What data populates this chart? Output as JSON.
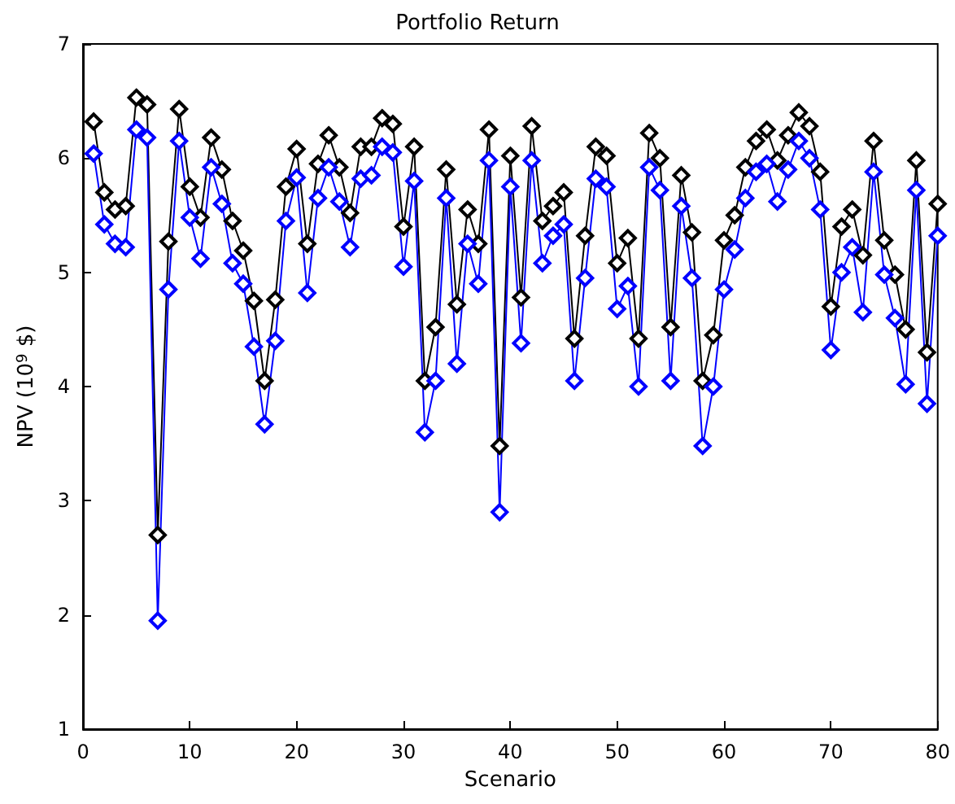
{
  "chart_data": {
    "type": "line",
    "title": "Portfolio Return",
    "xlabel": "Scenario",
    "ylabel": "NPV (10$^{9}$ $)",
    "x": [
      1,
      2,
      3,
      4,
      5,
      6,
      7,
      8,
      9,
      10,
      11,
      12,
      13,
      14,
      15,
      16,
      17,
      18,
      19,
      20,
      21,
      22,
      23,
      24,
      25,
      26,
      27,
      28,
      29,
      30,
      31,
      32,
      33,
      34,
      35,
      36,
      37,
      38,
      39,
      40,
      41,
      42,
      43,
      44,
      45,
      46,
      47,
      48,
      49,
      50,
      51,
      52,
      53,
      54,
      55,
      56,
      57,
      58,
      59,
      60,
      61,
      62,
      63,
      64,
      65,
      66,
      67,
      68,
      69,
      70,
      71,
      72,
      73,
      74,
      75,
      76,
      77,
      78,
      79,
      80
    ],
    "series": [
      {
        "color": "#000000",
        "values": [
          6.32,
          5.7,
          5.55,
          5.58,
          6.53,
          6.47,
          2.7,
          5.27,
          6.43,
          5.75,
          5.48,
          6.18,
          5.9,
          5.45,
          5.19,
          4.75,
          4.05,
          4.76,
          5.75,
          6.08,
          5.25,
          5.95,
          6.2,
          5.92,
          5.52,
          6.1,
          6.1,
          6.35,
          6.3,
          5.4,
          6.1,
          4.05,
          4.52,
          5.9,
          4.72,
          5.55,
          5.25,
          6.25,
          3.48,
          6.02,
          4.78,
          6.28,
          5.45,
          5.58,
          5.7,
          4.42,
          5.32,
          6.1,
          6.02,
          5.08,
          5.3,
          4.42,
          6.22,
          6.0,
          4.52,
          5.85,
          5.35,
          4.05,
          4.45,
          5.28,
          5.5,
          5.92,
          6.15,
          6.25,
          5.98,
          6.2,
          6.4,
          6.28,
          5.88,
          4.7,
          5.4,
          5.55,
          5.15,
          6.15,
          5.28,
          4.98,
          4.5,
          5.98,
          4.3,
          5.6
        ]
      },
      {
        "color": "#0000ff",
        "values": [
          6.04,
          5.42,
          5.25,
          5.22,
          6.25,
          6.18,
          1.95,
          4.85,
          6.15,
          5.48,
          5.12,
          5.92,
          5.6,
          5.08,
          4.9,
          4.35,
          3.67,
          4.4,
          5.45,
          5.83,
          4.82,
          5.65,
          5.92,
          5.62,
          5.22,
          5.82,
          5.85,
          6.1,
          6.05,
          5.05,
          5.8,
          3.6,
          4.05,
          5.65,
          4.2,
          5.25,
          4.9,
          5.98,
          2.9,
          5.75,
          4.38,
          5.98,
          5.08,
          5.32,
          5.42,
          4.05,
          4.95,
          5.82,
          5.75,
          4.68,
          4.88,
          4.0,
          5.92,
          5.72,
          4.05,
          5.58,
          4.95,
          3.48,
          4.0,
          4.85,
          5.2,
          5.65,
          5.88,
          5.95,
          5.62,
          5.9,
          6.15,
          6.0,
          5.55,
          4.32,
          5.0,
          5.22,
          4.65,
          5.88,
          4.98,
          4.6,
          4.02,
          5.72,
          3.85,
          5.32
        ]
      }
    ],
    "xlim": [
      0,
      80
    ],
    "xticks": [
      0,
      10,
      20,
      30,
      40,
      50,
      60,
      70,
      80
    ],
    "ylim": [
      1,
      7
    ],
    "yticks": [
      1,
      2,
      3,
      4,
      5,
      6,
      7
    ],
    "marker": "diamond",
    "line_style": "solid"
  }
}
